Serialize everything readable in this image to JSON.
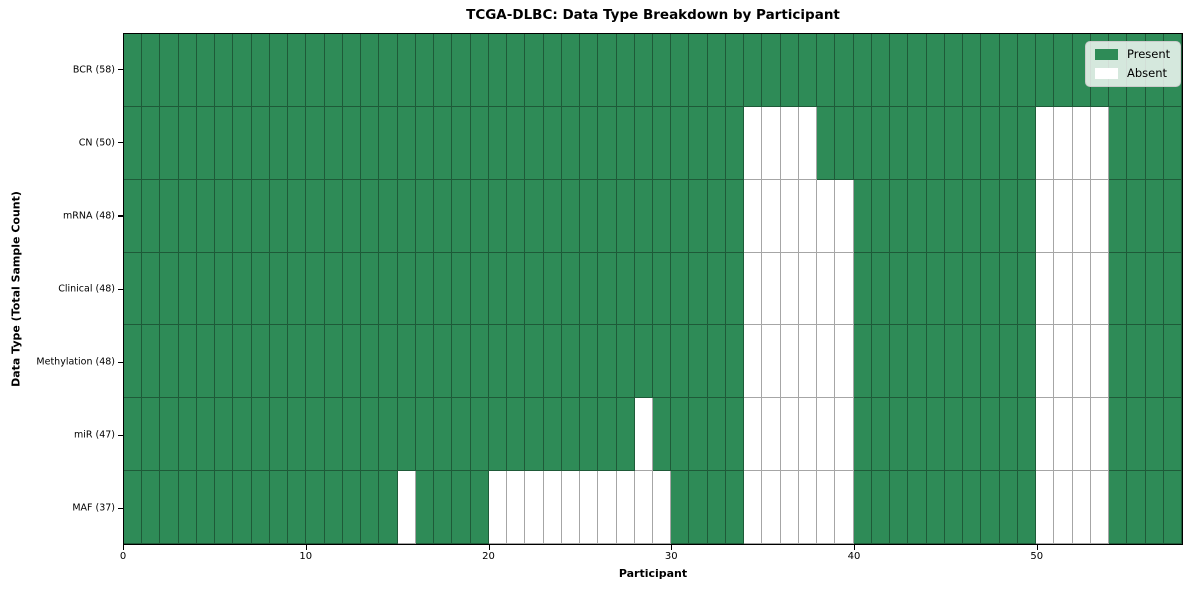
{
  "chart_data": {
    "type": "heatmap",
    "title": "TCGA-DLBC: Data Type Breakdown by Participant",
    "xlabel": "Participant",
    "ylabel": "Data Type (Total Sample Count)",
    "n_participants": 58,
    "xlim": [
      0,
      58
    ],
    "x_ticks": [
      0,
      10,
      20,
      30,
      40,
      50
    ],
    "grid": true,
    "legend_position": "upper right",
    "legend": [
      {
        "label": "Present",
        "color": "#2e8b57"
      },
      {
        "label": "Absent",
        "color": "#ffffff"
      }
    ],
    "colors": {
      "present": "#2e8b57",
      "absent": "#ffffff",
      "cell_edge": "rgba(0,0,0,0.35)"
    },
    "rows": [
      {
        "label": "BCR (58)",
        "data_type": "BCR",
        "total": 58,
        "absent_participants": []
      },
      {
        "label": "CN (50)",
        "data_type": "CN",
        "total": 50,
        "absent_participants": [
          34,
          35,
          36,
          37,
          50,
          51,
          52,
          53
        ]
      },
      {
        "label": "mRNA (48)",
        "data_type": "mRNA",
        "total": 48,
        "absent_participants": [
          34,
          35,
          36,
          37,
          38,
          39,
          50,
          51,
          52,
          53
        ]
      },
      {
        "label": "Clinical (48)",
        "data_type": "Clinical",
        "total": 48,
        "absent_participants": [
          34,
          35,
          36,
          37,
          38,
          39,
          50,
          51,
          52,
          53
        ]
      },
      {
        "label": "Methylation (48)",
        "data_type": "Methylation",
        "total": 48,
        "absent_participants": [
          34,
          35,
          36,
          37,
          38,
          39,
          50,
          51,
          52,
          53
        ]
      },
      {
        "label": "miR (47)",
        "data_type": "miR",
        "total": 47,
        "absent_participants": [
          28,
          34,
          35,
          36,
          37,
          38,
          39,
          50,
          51,
          52,
          53
        ]
      },
      {
        "label": "MAF (37)",
        "data_type": "MAF",
        "total": 37,
        "absent_participants": [
          15,
          20,
          21,
          22,
          23,
          24,
          25,
          26,
          27,
          28,
          29,
          34,
          35,
          36,
          37,
          38,
          39,
          50,
          51,
          52,
          53
        ]
      }
    ]
  }
}
